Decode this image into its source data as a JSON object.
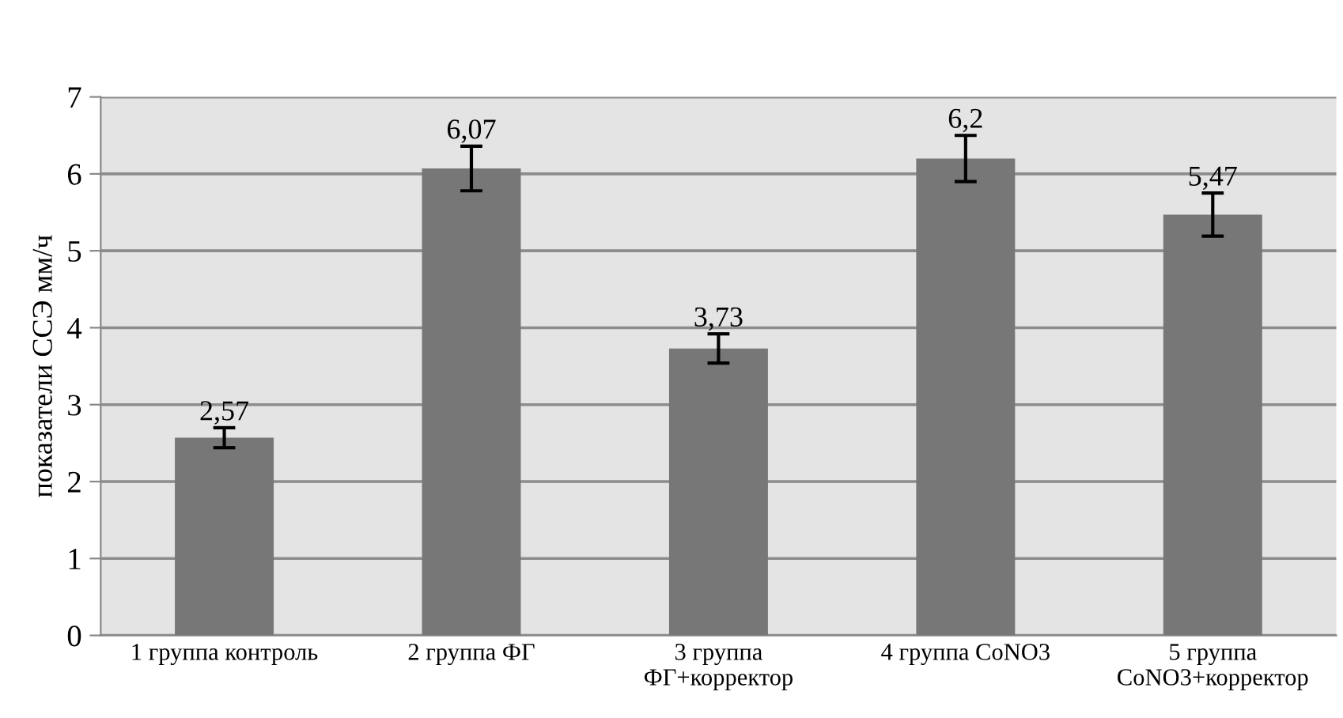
{
  "chart_data": {
    "type": "bar",
    "ylabel": "показатели ССЭ мм/ч",
    "categories": [
      "1 группа контроль",
      "2 группа ФГ",
      "3 группа\nФГ+корректор",
      "4 группа CoNO3",
      "5 группа\nCoNO3+корректор"
    ],
    "values": [
      2.57,
      6.07,
      3.73,
      6.2,
      5.47
    ],
    "errors": [
      0.13,
      0.29,
      0.19,
      0.3,
      0.28
    ],
    "value_labels": [
      "2,57",
      "6,07",
      "3,73",
      "6,2",
      "5,47"
    ],
    "color": "#777777",
    "ylim": [
      0,
      7
    ],
    "yticks": [
      0,
      1,
      2,
      3,
      4,
      5,
      6,
      7
    ],
    "grid": "y"
  }
}
